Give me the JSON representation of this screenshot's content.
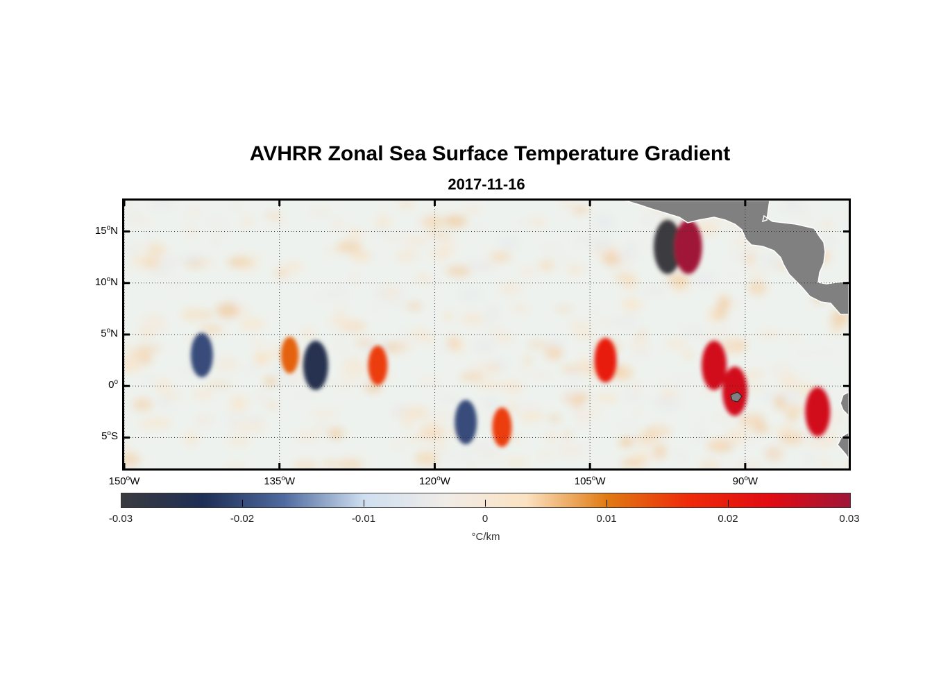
{
  "title": "AVHRR Zonal Sea Surface Temperature Gradient",
  "subtitle": "2017-11-16",
  "map": {
    "lon_range": [
      -150,
      -80
    ],
    "lat_range": [
      -8,
      18
    ],
    "land_color": "#808080",
    "graticule": "dotted",
    "y_ticks": [
      {
        "value": 15,
        "deg": "15",
        "hemi": "N"
      },
      {
        "value": 10,
        "deg": "10",
        "hemi": "N"
      },
      {
        "value": 5,
        "deg": "5",
        "hemi": "N"
      },
      {
        "value": 0,
        "deg": "0",
        "hemi": ""
      },
      {
        "value": -5,
        "deg": "5",
        "hemi": "S"
      }
    ],
    "x_ticks": [
      {
        "value": -150,
        "deg": "150",
        "hemi": "W"
      },
      {
        "value": -135,
        "deg": "135",
        "hemi": "W"
      },
      {
        "value": -120,
        "deg": "120",
        "hemi": "W"
      },
      {
        "value": -105,
        "deg": "105",
        "hemi": "W"
      },
      {
        "value": -90,
        "deg": "90",
        "hemi": "W"
      }
    ]
  },
  "colorbar": {
    "range": [
      -0.03,
      0.03
    ],
    "ticks": [
      "-0.03",
      "-0.02",
      "-0.01",
      "0",
      "0.01",
      "0.02",
      "0.03"
    ],
    "unit": "°C/km",
    "colors": [
      "#3a3b40",
      "#1e2e55",
      "#4f6a9e",
      "#cfdff0",
      "#f0ece8",
      "#fbe2c2",
      "#e07a12",
      "#ee2a0a",
      "#e10b12",
      "#a01538"
    ]
  },
  "chart_data": {
    "type": "heatmap",
    "title": "AVHRR Zonal Sea Surface Temperature Gradient",
    "subtitle": "2017-11-16",
    "variable_unit": "°C/km",
    "value_range": [
      -0.03,
      0.03
    ],
    "xlabel": "",
    "ylabel": "",
    "features": [
      {
        "lon": -97.5,
        "lat": 13.5,
        "value": -0.03
      },
      {
        "lon": -95.5,
        "lat": 13.5,
        "value": 0.03
      },
      {
        "lon": -131.5,
        "lat": 2.0,
        "value": -0.025
      },
      {
        "lon": -142.5,
        "lat": 3.0,
        "value": -0.02
      },
      {
        "lon": -103.5,
        "lat": 2.5,
        "value": 0.02
      },
      {
        "lon": -93.0,
        "lat": 2.0,
        "value": 0.025
      },
      {
        "lon": -91.0,
        "lat": -0.5,
        "value": 0.025
      },
      {
        "lon": -83.0,
        "lat": -2.5,
        "value": 0.025
      },
      {
        "lon": -125.5,
        "lat": 2.0,
        "value": 0.015
      },
      {
        "lon": -134.0,
        "lat": 3.0,
        "value": 0.012
      },
      {
        "lon": -117.0,
        "lat": -3.5,
        "value": -0.02
      },
      {
        "lon": -113.5,
        "lat": -4.0,
        "value": 0.015
      }
    ]
  }
}
